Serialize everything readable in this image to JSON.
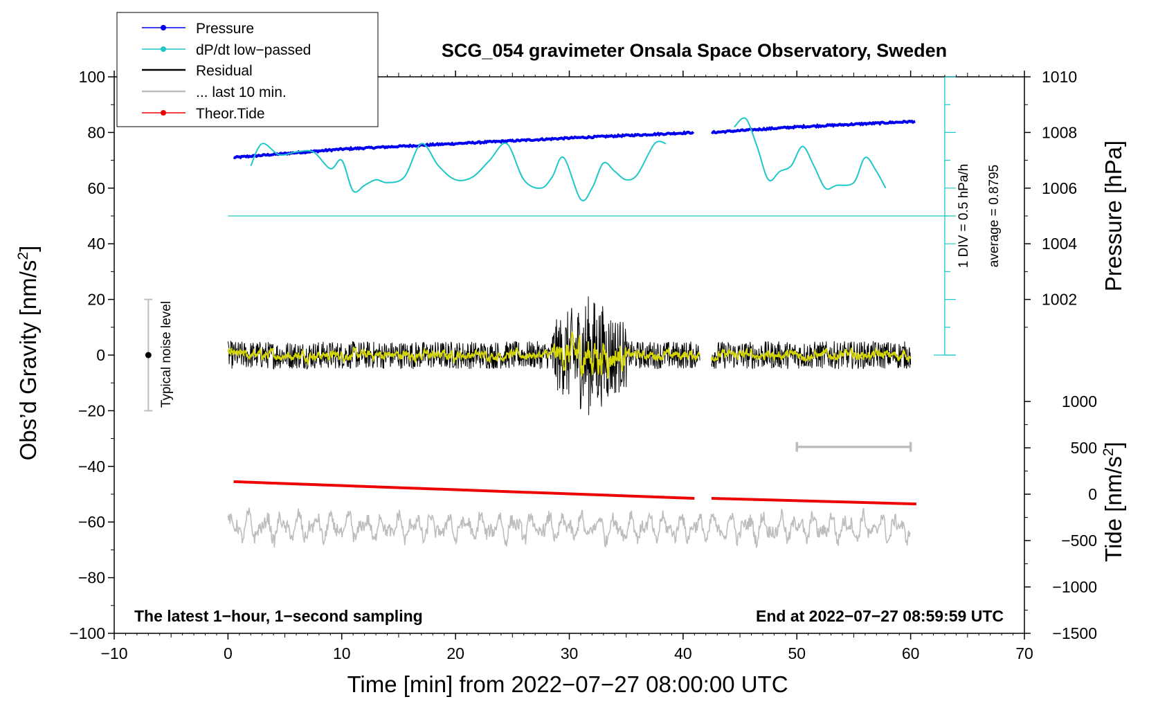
{
  "chart_data": {
    "type": "line",
    "title": "SCG_054 gravimeter Onsala Space Observatory, Sweden",
    "xlabel": "Time [min] from 2022−07−27 08:00:00 UTC",
    "ylabel_left": "Obs’d Gravity [nm/s²]",
    "ylabel_left_text": "Obs’d Gravity [nm/s",
    "ylabel_left_sup": "2",
    "ylabel_left_close": "]",
    "ylabel_right_pressure": "Pressure [hPa]",
    "ylabel_right_tide": "Tide [nm/s²]",
    "ylabel_right_tide_text": "Tide [nm/s",
    "ylabel_right_tide_sup": "2",
    "ylabel_right_tide_close": "]",
    "xlim": [
      -10,
      70
    ],
    "ylim": [
      -100,
      100
    ],
    "pressure_ylim": [
      1000,
      1010
    ],
    "tide_ylim": [
      -1500,
      1000
    ],
    "x_ticks": [
      "−10",
      "0",
      "10",
      "20",
      "30",
      "40",
      "50",
      "60",
      "70"
    ],
    "x_tick_values": [
      -10,
      0,
      10,
      20,
      30,
      40,
      50,
      60,
      70
    ],
    "y_ticks": [
      "100",
      "80",
      "60",
      "40",
      "20",
      "0",
      "−20",
      "−40",
      "−60",
      "−80",
      "−100"
    ],
    "y_tick_values": [
      100,
      80,
      60,
      40,
      20,
      0,
      -20,
      -40,
      -60,
      -80,
      -100
    ],
    "pressure_ticks": [
      "1010",
      "1008",
      "1006",
      "1004",
      "1002"
    ],
    "pressure_tick_values": [
      1010,
      1008,
      1006,
      1004,
      1002
    ],
    "tide_ticks": [
      "1000",
      "500",
      "0",
      "−500",
      "−1000",
      "−1500"
    ],
    "tide_tick_values": [
      1000,
      500,
      0,
      -500,
      -1000,
      -1500
    ],
    "legend": {
      "placement": "top-left",
      "entries": [
        {
          "label": "Pressure",
          "color": "#0000ee",
          "marker": "dot"
        },
        {
          "label": "dP/dt low−passed",
          "color": "#1fc7c7",
          "marker": "dot"
        },
        {
          "label": "Residual",
          "color": "#000000",
          "marker": "none"
        },
        {
          "label": "... last 10 min.",
          "color": "#bdbdbd",
          "marker": "none"
        },
        {
          "label": "Theor.Tide",
          "color": "#ee0000",
          "marker": "dot"
        }
      ]
    },
    "annotations": {
      "bottom_left": "The latest 1−hour, 1−second sampling",
      "bottom_right": "End at 2022−07−27 08:59:59 UTC",
      "noise_label": "Typical noise level",
      "dpdt_scale": "1 DIV = 0.5 hPa/h",
      "dpdt_average": "average = 0.8795"
    },
    "noise_bar": {
      "x": -7,
      "center": 0,
      "low": -20,
      "high": 20
    },
    "dpdt_reference": {
      "x": 63,
      "y_base": 0,
      "y_top": 100,
      "baseline_y": 50
    },
    "ten_min_marker": {
      "x_start": 50,
      "x_end": 60,
      "y": -33
    },
    "colors": {
      "pressure": "#0000ee",
      "dpdt": "#1fc7c7",
      "residual": "#000000",
      "residual_smooth": "#d4d400",
      "last10": "#bdbdbd",
      "tide": "#ee0000"
    },
    "series": [
      {
        "name": "Pressure",
        "axis": "pressure_hPa",
        "segments": [
          {
            "x": [
              0.5,
              10,
              20,
              30,
              41
            ],
            "y": [
              1007.1,
              1007.4,
              1007.6,
              1007.8,
              1008.0
            ]
          },
          {
            "x": [
              42.5,
              50,
              60.5
            ],
            "y": [
              1008.0,
              1008.2,
              1008.4
            ]
          }
        ]
      },
      {
        "name": "dP/dt low−passed",
        "axis": "gravity_scaled",
        "segments": [
          {
            "x": [
              2,
              3,
              4.5,
              6,
              7.5,
              9,
              10,
              11,
              12,
              13,
              14,
              15.5,
              17,
              18.5,
              20,
              21.5,
              23,
              24.5,
              26,
              27.5,
              28.5,
              29.5,
              31,
              32,
              33,
              34,
              35,
              36,
              37.5,
              38.5
            ],
            "y": [
              68,
              76,
              72,
              73,
              73,
              67,
              70,
              59,
              61,
              63,
              62,
              64,
              76,
              68,
              63,
              64,
              70,
              76,
              63,
              60,
              64,
              71,
              56,
              60,
              69,
              66,
              63,
              65,
              76,
              76
            ]
          },
          {
            "x": [
              44.5,
              45.5,
              46.5,
              47.5,
              48.5,
              49.5,
              50.5,
              51.5,
              52.5,
              53.5,
              55,
              56,
              57,
              57.8
            ],
            "y": [
              82,
              85,
              75,
              63,
              66,
              68,
              75,
              68,
              60,
              61,
              62,
              71,
              66,
              60
            ]
          }
        ]
      },
      {
        "name": "Residual",
        "axis": "gravity",
        "segments": [
          {
            "x_range": [
              0,
              41.5
            ],
            "amplitude_quiet": 5,
            "amplitude_active": 22,
            "active_window": [
              28.5,
              35
            ]
          },
          {
            "x_range": [
              42.5,
              60
            ],
            "amplitude_quiet": 5
          }
        ]
      },
      {
        "name": "... last 10 min.",
        "axis": "gravity",
        "center": -62,
        "amplitude": 6,
        "x_range": [
          0,
          60
        ]
      },
      {
        "name": "Theor.Tide",
        "axis": "gravity",
        "segments": [
          {
            "x": [
              0.5,
              41
            ],
            "y": [
              -45.5,
              -51.5
            ]
          },
          {
            "x": [
              42.5,
              60.5
            ],
            "y": [
              -51.5,
              -53.5
            ]
          }
        ]
      }
    ]
  }
}
